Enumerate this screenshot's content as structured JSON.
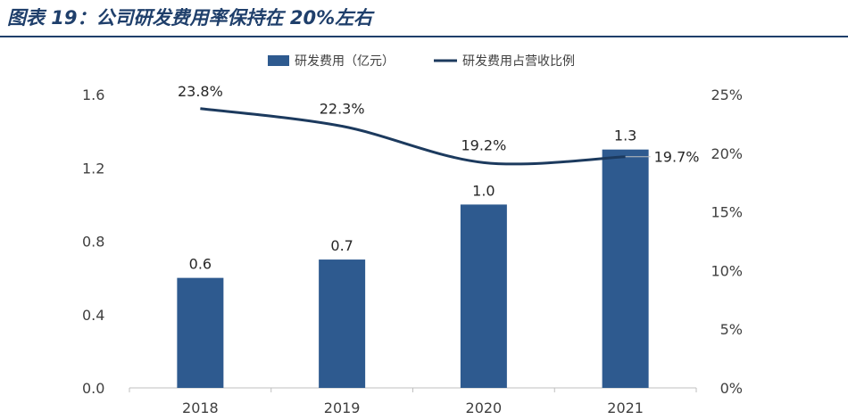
{
  "figure": {
    "title": "图表 19：公司研发费用率保持在 20%左右"
  },
  "colors": {
    "bar": "#2e5a8f",
    "line": "#1c3a5e",
    "title": "#1f3f6b",
    "axis": "#bfbfbf"
  },
  "chart_data": {
    "type": "bar",
    "categories": [
      "2018",
      "2019",
      "2020",
      "2021"
    ],
    "series": [
      {
        "name": "研发费用（亿元）",
        "type": "bar",
        "axis": "left",
        "values": [
          0.6,
          0.7,
          1.0,
          1.3
        ],
        "labels": [
          "0.6",
          "0.7",
          "1.0",
          "1.3"
        ]
      },
      {
        "name": "研发费用占营收比例",
        "type": "line",
        "axis": "right",
        "values": [
          23.8,
          22.3,
          19.2,
          19.7
        ],
        "labels": [
          "23.8%",
          "22.3%",
          "19.2%",
          "19.7%"
        ]
      }
    ],
    "left_axis": {
      "min": 0,
      "max": 1.6,
      "ticks": [
        "0.0",
        "0.4",
        "0.8",
        "1.2",
        "1.6"
      ],
      "tick_values": [
        0,
        0.4,
        0.8,
        1.2,
        1.6
      ]
    },
    "right_axis": {
      "min": 0,
      "max": 25,
      "ticks": [
        "0%",
        "5%",
        "10%",
        "15%",
        "20%",
        "25%"
      ],
      "tick_values": [
        0,
        5,
        10,
        15,
        20,
        25
      ]
    },
    "legend_position": "top",
    "grid": false
  }
}
